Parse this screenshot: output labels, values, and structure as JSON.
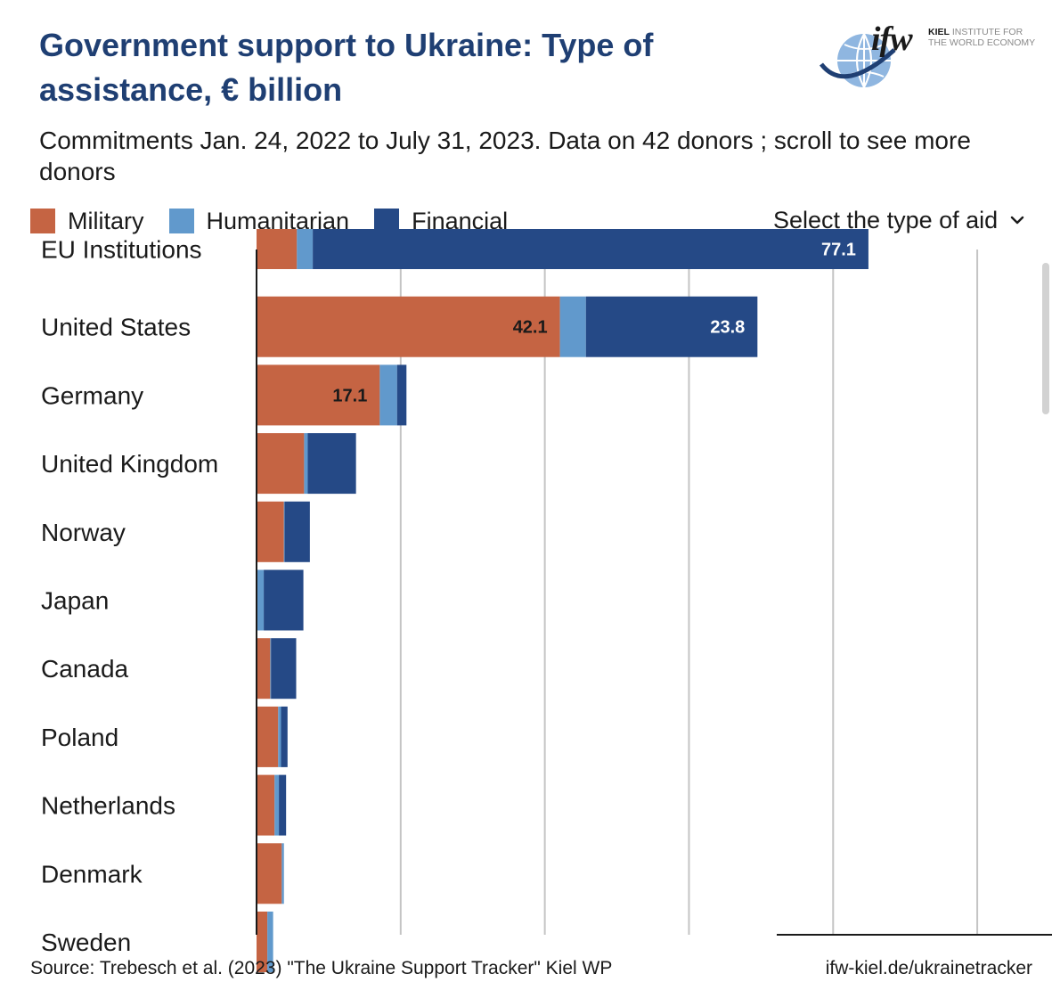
{
  "header": {
    "title": "Government support to Ukraine:  Type of assistance, € billion",
    "subtitle": "Commitments Jan. 24, 2022 to July 31, 2023. Data on 42 donors ; scroll to see more donors"
  },
  "logo": {
    "mark": "ifw",
    "text_bold": "KIEL",
    "text_rest": " INSTITUTE FOR\nTHE WORLD ECONOMY"
  },
  "legend": [
    {
      "label": "Military",
      "color": "#c56443"
    },
    {
      "label": "Humanitarian",
      "color": "#6199cc"
    },
    {
      "label": "Financial",
      "color": "#254986"
    }
  ],
  "selector": {
    "label": "Select the type of aid",
    "icon": "chevron-down-icon"
  },
  "footer": {
    "source": "Source: Trebesch et al. (2023) \"The Ukraine Support Tracker\" Kiel WP",
    "link": "ifw-kiel.de/ukrainetracker"
  },
  "chart_data": {
    "type": "bar",
    "orientation": "horizontal",
    "stacked": true,
    "xlim": [
      0,
      110
    ],
    "grid": true,
    "legend_position": "top-left",
    "categories": [
      "EU Institutions",
      "United States",
      "Germany",
      "United Kingdom",
      "Norway",
      "Japan",
      "Canada",
      "Poland",
      "Netherlands",
      "Denmark",
      "Sweden"
    ],
    "series": [
      {
        "name": "Military",
        "color": "#c56443",
        "values": [
          5.6,
          42.1,
          17.1,
          6.6,
          3.8,
          0,
          1.9,
          3.0,
          2.5,
          3.5,
          1.5
        ]
      },
      {
        "name": "Humanitarian",
        "color": "#6199cc",
        "values": [
          2.2,
          3.6,
          2.4,
          0.5,
          0.1,
          1.0,
          0.1,
          0.4,
          0.6,
          0.3,
          0.8
        ]
      },
      {
        "name": "Financial",
        "color": "#254986",
        "values": [
          77.1,
          23.8,
          1.3,
          6.7,
          3.5,
          5.5,
          3.5,
          0.9,
          1.0,
          0,
          0
        ]
      }
    ],
    "data_labels": [
      {
        "category": "EU Institutions",
        "series": "Financial",
        "text": "77.1"
      },
      {
        "category": "United States",
        "series": "Military",
        "text": "42.1"
      },
      {
        "category": "United States",
        "series": "Financial",
        "text": "23.8"
      },
      {
        "category": "Germany",
        "series": "Military",
        "text": "17.1"
      }
    ]
  }
}
